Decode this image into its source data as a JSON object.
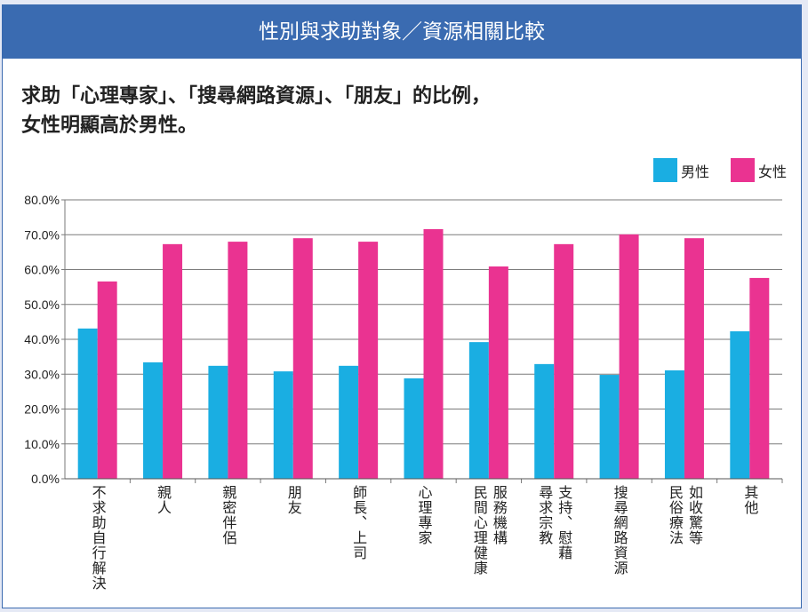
{
  "header": {
    "title": "性別與求助對象／資源相關比較"
  },
  "headline": {
    "line1": "求助「心理專家」、「搜尋網路資源」、「朋友」的比例，",
    "line2": "女性明顯高於男性。"
  },
  "colors": {
    "male": "#1aaee2",
    "female": "#ea3391",
    "header": "#3a6bb1",
    "grid": "#7a7a7a"
  },
  "chart_data": {
    "type": "bar",
    "title": "性別與求助對象／資源相關比較",
    "xlabel": "",
    "ylabel": "",
    "ylim": [
      0,
      80
    ],
    "yticks": [
      "0.0%",
      "10.0%",
      "20.0%",
      "30.0%",
      "40.0%",
      "50.0%",
      "60.0%",
      "70.0%",
      "80.0%"
    ],
    "grid": true,
    "legend_position": "top-right",
    "categories": [
      {
        "name": "不求助自行解決",
        "columns": [
          "不求助自行解決"
        ]
      },
      {
        "name": "親人",
        "columns": [
          "親人"
        ]
      },
      {
        "name": "親密伴侶",
        "columns": [
          "親密伴侶"
        ]
      },
      {
        "name": "朋友",
        "columns": [
          "朋友"
        ]
      },
      {
        "name": "師長、上司",
        "columns": [
          "師長、上司"
        ]
      },
      {
        "name": "心理專家",
        "columns": [
          "心理專家"
        ]
      },
      {
        "name": "民間心理健康服務機構",
        "columns": [
          "民間心理健康",
          "服務機構"
        ]
      },
      {
        "name": "尋求宗教支持、慰藉",
        "columns": [
          "尋求宗教",
          "支持、慰藉"
        ]
      },
      {
        "name": "搜尋網路資源",
        "columns": [
          "搜尋網路資源"
        ]
      },
      {
        "name": "如收驚等民俗療法",
        "columns": [
          "民俗療法",
          "如收驚等"
        ]
      },
      {
        "name": "其他",
        "columns": [
          "其他"
        ]
      }
    ],
    "series": [
      {
        "name": "男性",
        "values": [
          43.1,
          33.4,
          32.4,
          30.8,
          32.4,
          28.8,
          39.2,
          32.9,
          29.8,
          31.1,
          42.3
        ]
      },
      {
        "name": "女性",
        "values": [
          56.6,
          67.3,
          68.0,
          69.0,
          68.0,
          71.6,
          60.9,
          67.3,
          70.1,
          69.0,
          57.6
        ]
      }
    ]
  }
}
